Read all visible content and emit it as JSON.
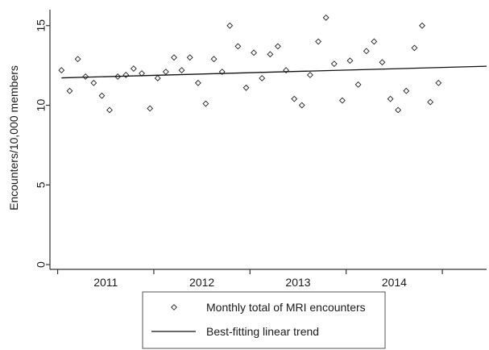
{
  "chart_data": {
    "type": "scatter",
    "title": "",
    "xlabel": "",
    "ylabel": "Encounters/10,000 members",
    "xlim": [
      2010.42,
      2014.96
    ],
    "ylim": [
      -0.3,
      16
    ],
    "yticks": [
      0,
      5,
      10,
      15
    ],
    "ytick_labels": [
      "0",
      "5",
      "10",
      "15"
    ],
    "xtick_labels": [
      {
        "label": "2011",
        "x": 2011.0
      },
      {
        "label": "2012",
        "x": 2012.0
      },
      {
        "label": "2013",
        "x": 2013.0
      },
      {
        "label": "2014",
        "x": 2014.0
      }
    ],
    "grid": false,
    "legend_position": "bottom",
    "series": [
      {
        "name": "Monthly total of MRI encounters",
        "kind": "scatter",
        "marker": "diamond",
        "x": [
          2010.54,
          2010.625,
          2010.71,
          2010.79,
          2010.875,
          2010.96,
          2011.04,
          2011.125,
          2011.21,
          2011.29,
          2011.375,
          2011.46,
          2011.54,
          2011.625,
          2011.71,
          2011.79,
          2011.875,
          2011.96,
          2012.04,
          2012.125,
          2012.21,
          2012.29,
          2012.375,
          2012.46,
          2012.54,
          2012.625,
          2012.71,
          2012.79,
          2012.875,
          2012.96,
          2013.04,
          2013.125,
          2013.21,
          2013.29,
          2013.375,
          2013.46,
          2013.54,
          2013.625,
          2013.71,
          2013.79,
          2013.875,
          2013.96,
          2014.04,
          2014.125,
          2014.21,
          2014.29,
          2014.375,
          2014.46
        ],
        "y": [
          12.2,
          10.9,
          12.9,
          11.8,
          11.4,
          10.6,
          9.7,
          11.8,
          11.9,
          12.3,
          12.0,
          9.8,
          11.7,
          12.1,
          13.0,
          12.2,
          13.0,
          11.4,
          10.1,
          12.9,
          12.1,
          15.0,
          13.7,
          11.1,
          13.3,
          11.7,
          13.2,
          13.7,
          12.2,
          10.4,
          10.0,
          11.9,
          14.0,
          15.5,
          12.6,
          10.3,
          12.8,
          11.3,
          13.4,
          14.0,
          12.7,
          10.4,
          9.7,
          10.9,
          13.6,
          15.0,
          10.2,
          11.4
        ]
      },
      {
        "name": "Best-fitting linear trend",
        "kind": "line",
        "x": [
          2010.54,
          2014.96
        ],
        "y": [
          11.72,
          12.45
        ]
      }
    ]
  }
}
